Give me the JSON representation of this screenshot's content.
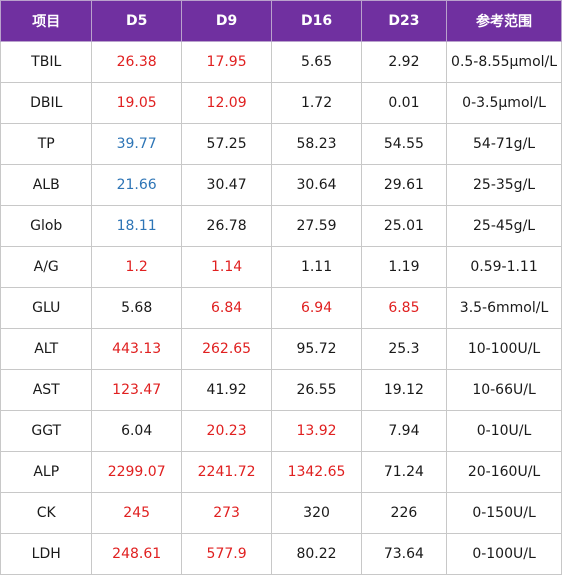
{
  "table": {
    "headers": [
      "项目",
      "D5",
      "D9",
      "D16",
      "D23",
      "参考范围"
    ],
    "rows": [
      {
        "item": "TBIL",
        "d5": "26.38",
        "d9": "17.95",
        "d16": "5.65",
        "d23": "2.92",
        "range": "0.5-8.55μmol/L",
        "flags": [
          "red",
          "red",
          "",
          ""
        ]
      },
      {
        "item": "DBIL",
        "d5": "19.05",
        "d9": "12.09",
        "d16": "1.72",
        "d23": "0.01",
        "range": "0-3.5μmol/L",
        "flags": [
          "red",
          "red",
          "",
          ""
        ]
      },
      {
        "item": "TP",
        "d5": "39.77",
        "d9": "57.25",
        "d16": "58.23",
        "d23": "54.55",
        "range": "54-71g/L",
        "flags": [
          "blue",
          "",
          "",
          ""
        ]
      },
      {
        "item": "ALB",
        "d5": "21.66",
        "d9": "30.47",
        "d16": "30.64",
        "d23": "29.61",
        "range": "25-35g/L",
        "flags": [
          "blue",
          "",
          "",
          ""
        ]
      },
      {
        "item": "Glob",
        "d5": "18.11",
        "d9": "26.78",
        "d16": "27.59",
        "d23": "25.01",
        "range": "25-45g/L",
        "flags": [
          "blue",
          "",
          "",
          ""
        ]
      },
      {
        "item": "A/G",
        "d5": "1.2",
        "d9": "1.14",
        "d16": "1.11",
        "d23": "1.19",
        "range": "0.59-1.11",
        "flags": [
          "red",
          "red",
          "",
          ""
        ]
      },
      {
        "item": "GLU",
        "d5": "5.68",
        "d9": "6.84",
        "d16": "6.94",
        "d23": "6.85",
        "range": "3.5-6mmol/L",
        "flags": [
          "",
          "red",
          "red",
          "red"
        ]
      },
      {
        "item": "ALT",
        "d5": "443.13",
        "d9": "262.65",
        "d16": "95.72",
        "d23": "25.3",
        "range": "10-100U/L",
        "flags": [
          "red",
          "red",
          "",
          ""
        ]
      },
      {
        "item": "AST",
        "d5": "123.47",
        "d9": "41.92",
        "d16": "26.55",
        "d23": "19.12",
        "range": "10-66U/L",
        "flags": [
          "red",
          "",
          "",
          ""
        ]
      },
      {
        "item": "GGT",
        "d5": "6.04",
        "d9": "20.23",
        "d16": "13.92",
        "d23": "7.94",
        "range": "0-10U/L",
        "flags": [
          "",
          "red",
          "red",
          ""
        ]
      },
      {
        "item": "ALP",
        "d5": "2299.07",
        "d9": "2241.72",
        "d16": "1342.65",
        "d23": "71.24",
        "range": "20-160U/L",
        "flags": [
          "red",
          "red",
          "red",
          ""
        ]
      },
      {
        "item": "CK",
        "d5": "245",
        "d9": "273",
        "d16": "320",
        "d23": "226",
        "range": "0-150U/L",
        "flags": [
          "red",
          "red",
          "",
          ""
        ]
      },
      {
        "item": "LDH",
        "d5": "248.61",
        "d9": "577.9",
        "d16": "80.22",
        "d23": "73.64",
        "range": "0-100U/L",
        "flags": [
          "red",
          "red",
          "",
          ""
        ]
      }
    ]
  },
  "colors": {
    "header_bg": "#7030a0",
    "header_text": "#ffffff",
    "high_value": "#e02020",
    "low_value": "#2e75b6",
    "normal_value": "#1a1a1a",
    "border": "#c8c8c8"
  }
}
